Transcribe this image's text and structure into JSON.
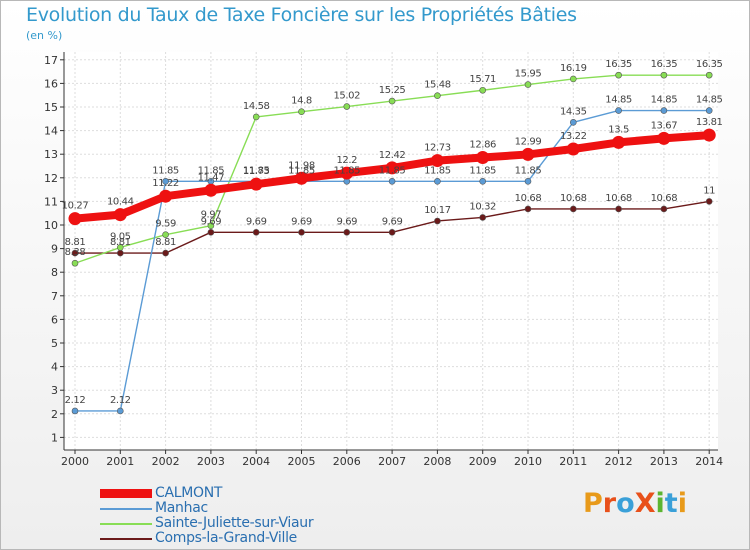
{
  "title": "Evolution du Taux de Taxe Foncière sur les Propriétés Bâties",
  "unit": "(en %)",
  "logo": {
    "text": "ProXiti",
    "letters": [
      "P",
      "r",
      "o",
      "X",
      "i",
      "t",
      "i"
    ],
    "colors": [
      "#e89a1a",
      "#e8501a",
      "#3aa0d8",
      "#e8501a",
      "#5cb531",
      "#3aa0d8",
      "#e89a1a"
    ]
  },
  "chart_data": {
    "type": "line",
    "title": "Evolution du Taux de Taxe Foncière sur les Propriétés Bâties",
    "ylabel": "(en %)",
    "xlabel": "",
    "ylim": [
      0,
      17
    ],
    "yticks": [
      "1",
      "2",
      "3",
      "4",
      "5",
      "6",
      "7",
      "8",
      "9",
      "10",
      "11",
      "12",
      "13",
      "14",
      "15",
      "16",
      "17"
    ],
    "categories": [
      "2000",
      "2001",
      "2002",
      "2003",
      "2004",
      "2005",
      "2006",
      "2007",
      "2008",
      "2009",
      "2010",
      "2011",
      "2012",
      "2013",
      "2014"
    ],
    "series": [
      {
        "name": "Comps-la-Grand-Ville",
        "color": "#6b1a1a",
        "values": [
          8.81,
          8.81,
          8.81,
          9.69,
          9.69,
          9.69,
          9.69,
          9.69,
          10.17,
          10.32,
          10.68,
          10.68,
          10.68,
          10.68,
          11
        ],
        "labels": [
          "8.81",
          "8.81",
          "8.81",
          "9.69",
          "9.69",
          "9.69",
          "9.69",
          "9.69",
          "10.17",
          "10.32",
          "10.68",
          "10.68",
          "10.68",
          "10.68",
          "11"
        ]
      },
      {
        "name": "Sainte-Juliette-sur-Viaur",
        "color": "#88dd55",
        "values": [
          8.38,
          9.05,
          9.59,
          9.97,
          14.58,
          14.8,
          15.02,
          15.25,
          15.48,
          15.71,
          15.95,
          16.19,
          16.35,
          16.35,
          16.35
        ],
        "labels": [
          "8.38",
          "9.05",
          "9.59",
          "9.97",
          "14.58",
          "14.8",
          "15.02",
          "15.25",
          "15.48",
          "15.71",
          "15.95",
          "16.19",
          "16.35",
          "16.35",
          "16.35"
        ]
      },
      {
        "name": "Manhac",
        "color": "#5b9bd5",
        "values": [
          2.12,
          2.12,
          11.85,
          11.85,
          11.85,
          11.85,
          11.85,
          11.85,
          11.85,
          11.85,
          11.85,
          14.35,
          14.85,
          14.85,
          14.85
        ],
        "labels": [
          "2.12",
          "2.12",
          "11.85",
          "11.85",
          "11.85",
          "11.85",
          "11.85",
          "11.85",
          "11.85",
          "11.85",
          "11.85",
          "14.35",
          "14.85",
          "14.85",
          "14.85"
        ]
      },
      {
        "name": "CALMONT",
        "color": "#ee1111",
        "values": [
          10.27,
          10.44,
          11.22,
          11.47,
          11.73,
          11.98,
          12.2,
          12.42,
          12.73,
          12.86,
          12.99,
          13.22,
          13.5,
          13.67,
          13.81
        ],
        "labels": [
          "10.27",
          "10.44",
          "11.22",
          "11.47",
          "11.73",
          "11.98",
          "12.2",
          "12.42",
          "12.73",
          "12.86",
          "12.99",
          "13.22",
          "13.5",
          "13.67",
          "13.81"
        ]
      }
    ],
    "legend": [
      "CALMONT",
      "Manhac",
      "Sainte-Juliette-sur-Viaur",
      "Comps-la-Grand-Ville"
    ],
    "legend_position": "bottom-left",
    "grid": true
  }
}
